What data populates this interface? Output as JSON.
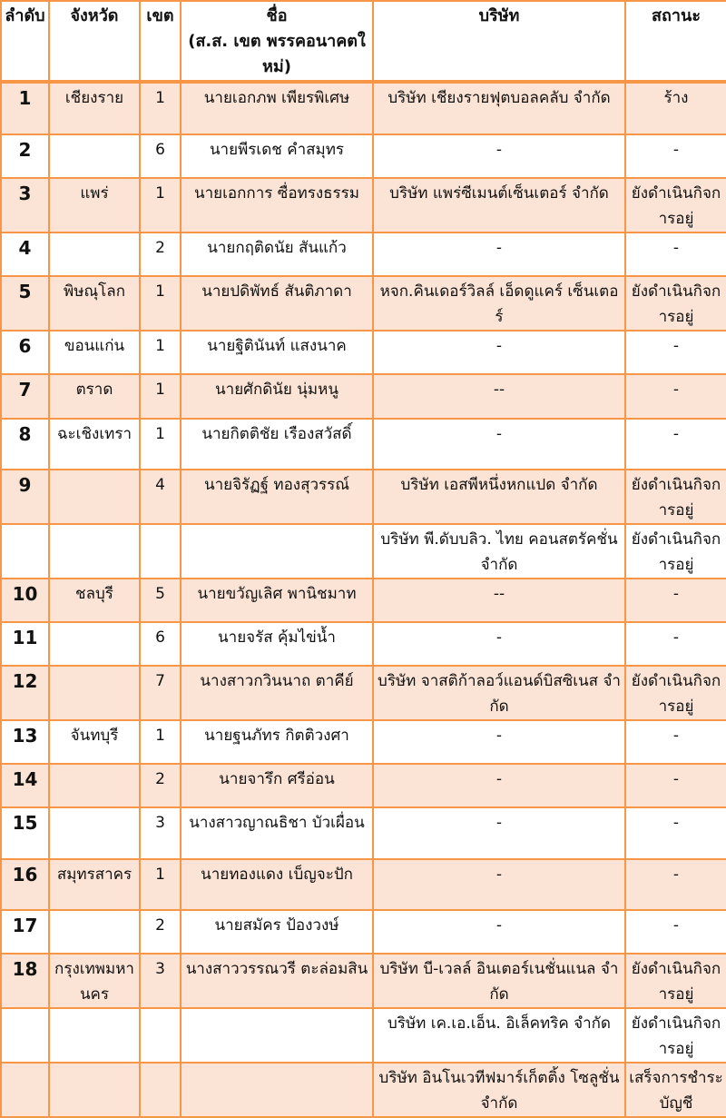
{
  "colors": {
    "border": "#f79646",
    "shade": "#fbe4d5"
  },
  "headers": [
    "ลำดับ",
    "จังหวัด",
    "เขต",
    "ชื่อ\n(ส.ส. เขต พรรคอนาคตใหม่)",
    "บริษัท",
    "สถานะ"
  ],
  "rows": [
    {
      "no": "1",
      "province": "เชียงราย",
      "district": "1",
      "name": "นายเอกภพ เพียรพิเศษ",
      "company": "บริษัท เชียงรายฟุตบอลคลับ จำกัด",
      "status": "ร้าง"
    },
    {
      "no": "2",
      "province": "",
      "district": "6",
      "name": "นายพีรเดช คำสมุทร",
      "company": "-",
      "status": "-"
    },
    {
      "no": "3",
      "province": "แพร่",
      "district": "1",
      "name": "นายเอกการ ซื่อทรงธรรม",
      "company": "บริษัท แพร่ซีเมนต์เซ็นเตอร์ จำกัด",
      "status": "ยังดำเนินกิจการอยู่"
    },
    {
      "no": "4",
      "province": "",
      "district": "2",
      "name": "นายกฤติดนัย สันแก้ว",
      "company": "-",
      "status": "-"
    },
    {
      "no": "5",
      "province": "พิษณุโลก",
      "district": "1",
      "name": "นายปดิพัทธ์ สันติภาดา",
      "company": "หจก.คินเดอร์วิลล์ เอ็ดดูแคร์ เซ็นเตอร์",
      "status": "ยังดำเนินกิจการอยู่"
    },
    {
      "no": "6",
      "province": "ขอนแก่น",
      "district": "1",
      "name": "นายฐิตินันท์ แสงนาค",
      "company": "-",
      "status": "-"
    },
    {
      "no": "7",
      "province": "ตราด",
      "district": "1",
      "name": "นายศักดินัย นุ่มหนู",
      "company": "--",
      "status": "-"
    },
    {
      "no": "8",
      "province": "ฉะเชิงเทรา",
      "district": "1",
      "name": "นายกิตติชัย เรืองสวัสดิ์",
      "company": "-",
      "status": "-"
    },
    {
      "no": "9",
      "province": "",
      "district": "4",
      "name": "นายจิรัฏฐ์ ทองสุวรรณ์",
      "company": "บริษัท เอสพีหนึ่งหกแปด จำกัด",
      "status": "ยังดำเนินกิจการอยู่"
    },
    {
      "no": "",
      "province": "",
      "district": "",
      "name": "",
      "company": "บริษัท พี.ดับบลิว. ไทย คอนสตรัคชั่น จำกัด",
      "status": "ยังดำเนินกิจการอยู่"
    },
    {
      "no": "10",
      "province": "ชลบุรี",
      "district": "5",
      "name": "นายขวัญเลิศ พานิชมาท",
      "company": "--",
      "status": "-"
    },
    {
      "no": "11",
      "province": "",
      "district": "6",
      "name": "นายจรัส คุ้มไข่น้ำ",
      "company": "-",
      "status": "-"
    },
    {
      "no": "12",
      "province": "",
      "district": "7",
      "name": "นางสาวกวินนาถ ตาคีย์",
      "company": "บริษัท จาสติก้าลอว์แอนด์บิสซิเนส จำกัด",
      "status": "ยังดำเนินกิจการอยู่"
    },
    {
      "no": "13",
      "province": "จันทบุรี",
      "district": "1",
      "name": "นายฐนภัทร กิตติวงศา",
      "company": "-",
      "status": "-"
    },
    {
      "no": "14",
      "province": "",
      "district": "2",
      "name": "นายจารึก ศรีอ่อน",
      "company": "-",
      "status": "-"
    },
    {
      "no": "15",
      "province": "",
      "district": "3",
      "name": "นางสาวญาณธิชา บัวเผื่อน",
      "company": "-",
      "status": "-"
    },
    {
      "no": "16",
      "province": "สมุทรสาคร",
      "district": "1",
      "name": "นายทองแดง เบ็ญจะปัก",
      "company": "-",
      "status": "-"
    },
    {
      "no": "17",
      "province": "",
      "district": "2",
      "name": "นายสมัคร ป้องวงษ์",
      "company": "-",
      "status": "-"
    },
    {
      "no": "18",
      "province": "กรุงเทพมหานคร",
      "district": "3",
      "name": "นางสาววรรณวรี ตะล่อมสิน",
      "company": "บริษัท บี-เวลล์ อินเตอร์เนชั่นแนล จำกัด",
      "status": "ยังดำเนินกิจการอยู่"
    },
    {
      "no": "",
      "province": "",
      "district": "",
      "name": "",
      "company": "บริษัท เค.เอ.เอ็น. อิเล็คทริค จำกัด",
      "status": "ยังดำเนินกิจการอยู่"
    },
    {
      "no": "",
      "province": "",
      "district": "",
      "name": "",
      "company": "บริษัท อินโนเวทีฟมาร์เก็ตติ้ง โซลูชั่น จำกัด",
      "status": "เสร็จการชำระบัญชี"
    }
  ]
}
